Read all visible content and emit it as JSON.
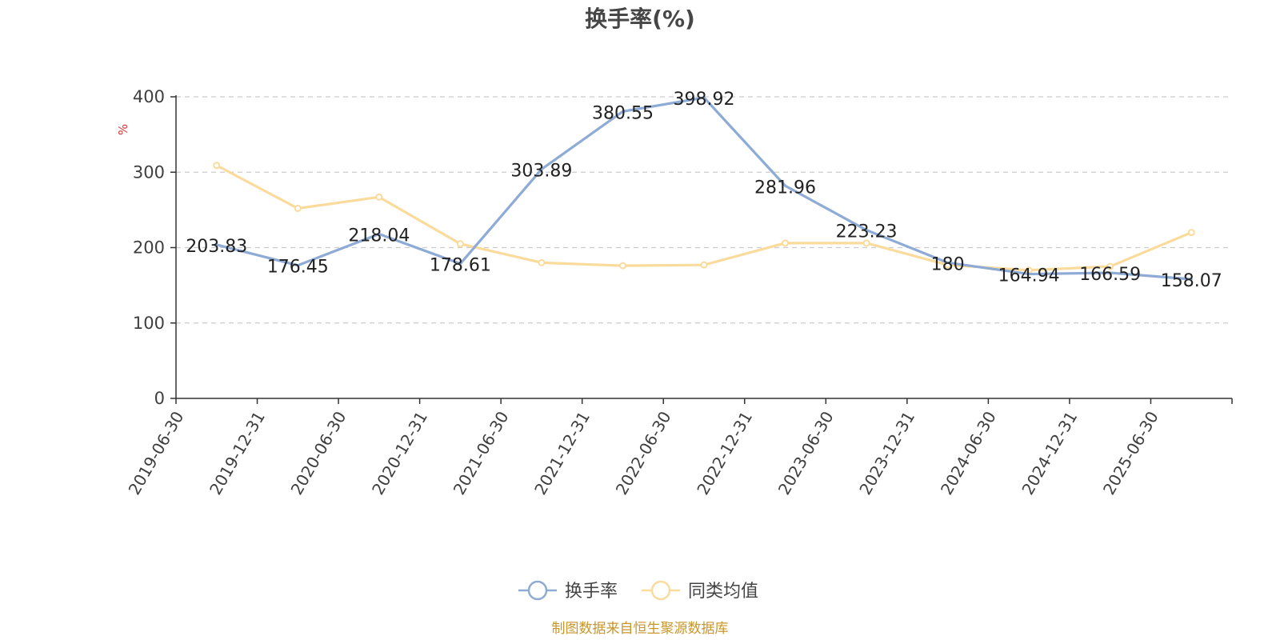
{
  "chart_data": {
    "type": "line",
    "title": "换手率(%)",
    "ylabel": "%",
    "xlabel": "",
    "ylim": [
      0,
      400
    ],
    "yticks": [
      0,
      100,
      200,
      300,
      400
    ],
    "grid": true,
    "legend_position": "bottom",
    "categories": [
      "2019-06-30",
      "2019-12-31",
      "2020-06-30",
      "2020-12-31",
      "2021-06-30",
      "2021-12-31",
      "2022-06-30",
      "2022-12-31",
      "2023-06-30",
      "2023-12-31",
      "2024-06-30",
      "2024-12-31",
      "2025-06-30"
    ],
    "series": [
      {
        "name": "换手率",
        "color": "#8eabd6",
        "values": [
          203.83,
          176.45,
          218.04,
          178.61,
          303.89,
          380.55,
          398.92,
          281.96,
          223.23,
          180,
          164.94,
          166.59,
          158.07
        ],
        "labels": [
          "203.83",
          "176.45",
          "218.04",
          "178.61",
          "303.89",
          "380.55",
          "398.92",
          "281.96",
          "223.23",
          "180",
          "164.94",
          "166.59",
          "158.07"
        ]
      },
      {
        "name": "同类均值",
        "color": "#fadb9c",
        "values": [
          309,
          252,
          267,
          205,
          180,
          176,
          177,
          206,
          206,
          177,
          170,
          175,
          220
        ]
      }
    ],
    "source": "制图数据来自恒生聚源数据库"
  }
}
